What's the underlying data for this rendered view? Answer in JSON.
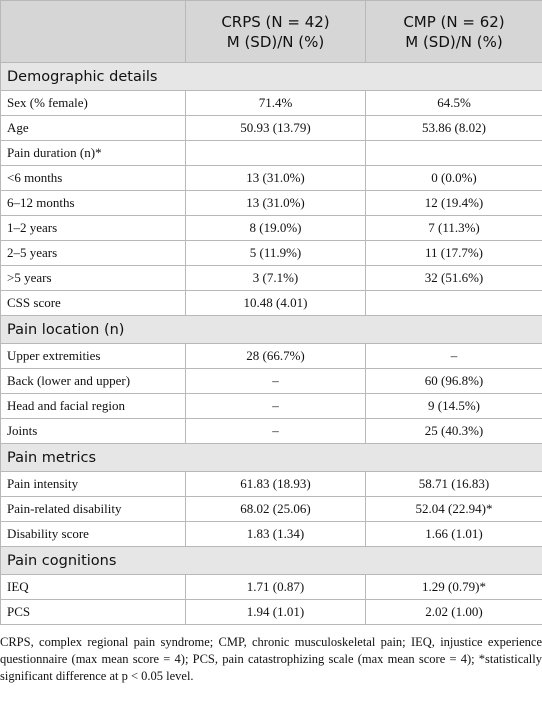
{
  "table": {
    "header": [
      null,
      [
        "CRPS (N = 42)",
        "M (SD)/N (%)"
      ],
      [
        "CMP (N = 62)",
        "M (SD)/N (%)"
      ]
    ],
    "sections": [
      {
        "title": "Demographic details",
        "rows": [
          [
            "Sex (% female)",
            "71.4%",
            "64.5%"
          ],
          [
            "Age",
            "50.93 (13.79)",
            "53.86 (8.02)"
          ],
          [
            "Pain duration (n)*",
            null,
            null
          ],
          [
            "<6 months",
            "13 (31.0%)",
            "0 (0.0%)"
          ],
          [
            "6–12 months",
            "13 (31.0%)",
            "12 (19.4%)"
          ],
          [
            "1–2 years",
            "8 (19.0%)",
            "7 (11.3%)"
          ],
          [
            "2–5 years",
            "5 (11.9%)",
            "11 (17.7%)"
          ],
          [
            ">5 years",
            "3 (7.1%)",
            "32 (51.6%)"
          ],
          [
            "CSS score",
            "10.48 (4.01)",
            null
          ]
        ]
      },
      {
        "title": "Pain location (n)",
        "rows": [
          [
            "Upper extremities",
            "28 (66.7%)",
            "–"
          ],
          [
            "Back (lower and upper)",
            "–",
            "60 (96.8%)"
          ],
          [
            "Head and facial region",
            "–",
            "9 (14.5%)"
          ],
          [
            "Joints",
            "–",
            "25 (40.3%)"
          ]
        ]
      },
      {
        "title": "Pain metrics",
        "rows": [
          [
            "Pain intensity",
            "61.83 (18.93)",
            "58.71 (16.83)"
          ],
          [
            "Pain-related disability",
            "68.02 (25.06)",
            "52.04 (22.94)*"
          ],
          [
            "Disability score",
            "1.83 (1.34)",
            "1.66 (1.01)"
          ]
        ]
      },
      {
        "title": "Pain cognitions",
        "rows": [
          [
            "IEQ",
            "1.71 (0.87)",
            "1.29 (0.79)*"
          ],
          [
            "PCS",
            "1.94 (1.01)",
            "2.02 (1.00)"
          ]
        ]
      }
    ],
    "footnote": "CRPS, complex regional pain syndrome; CMP, chronic musculoskeletal pain; IEQ, injustice experience questionnaire (max mean score = 4); PCS, pain catastrophizing scale (max mean score = 4); *statistically significant difference at p < 0.05 level."
  }
}
